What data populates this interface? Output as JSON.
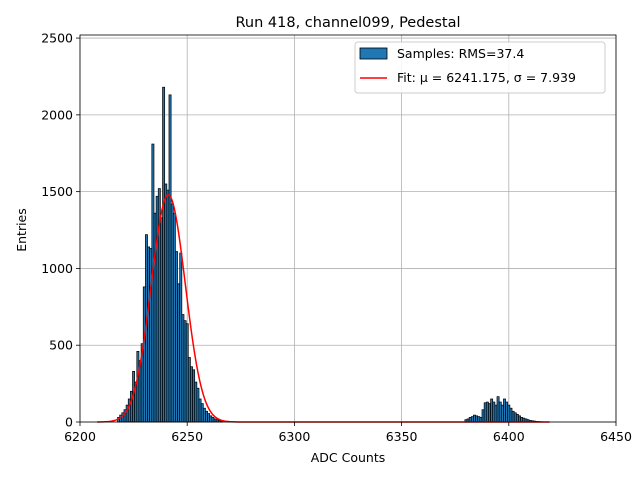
{
  "chart_data": {
    "type": "bar",
    "title": "Run 418, channel099, Pedestal",
    "xlabel": "ADC Counts",
    "ylabel": "Entries",
    "xlim": [
      6200,
      6450
    ],
    "ylim": [
      0,
      2520
    ],
    "xticks": [
      6200,
      6250,
      6300,
      6350,
      6400,
      6450
    ],
    "yticks": [
      0,
      500,
      1000,
      1500,
      2000,
      2500
    ],
    "grid": true,
    "legend_position": "top-right",
    "colors": {
      "bar_fill": "#1f77b4",
      "bar_edge": "#000000",
      "fit_line": "#ff0000",
      "grid": "#b0b0b0"
    },
    "legend": [
      {
        "label": "Samples: RMS=37.4",
        "kind": "patch"
      },
      {
        "label": "Fit: μ = 6241.175, σ = 7.939",
        "kind": "line"
      }
    ],
    "bin_width": 1,
    "histogram": {
      "x": [
        6218,
        6219,
        6220,
        6221,
        6222,
        6223,
        6224,
        6225,
        6226,
        6227,
        6228,
        6229,
        6230,
        6231,
        6232,
        6233,
        6234,
        6235,
        6236,
        6237,
        6238,
        6239,
        6240,
        6241,
        6242,
        6243,
        6244,
        6245,
        6246,
        6247,
        6248,
        6249,
        6250,
        6251,
        6252,
        6253,
        6254,
        6255,
        6256,
        6257,
        6258,
        6259,
        6260,
        6261,
        6262,
        6263,
        6264,
        6265,
        6266,
        6380,
        6381,
        6382,
        6383,
        6384,
        6385,
        6386,
        6387,
        6388,
        6389,
        6390,
        6391,
        6392,
        6393,
        6394,
        6395,
        6396,
        6397,
        6398,
        6399,
        6400,
        6401,
        6402,
        6403,
        6404,
        6405,
        6406,
        6407,
        6408,
        6409,
        6410,
        6411,
        6412,
        6413,
        6414,
        6415
      ],
      "values": [
        30,
        45,
        60,
        80,
        110,
        150,
        200,
        330,
        260,
        460,
        400,
        510,
        880,
        1220,
        1140,
        1130,
        1810,
        1360,
        1470,
        1520,
        1330,
        2180,
        1550,
        1510,
        2130,
        1420,
        1360,
        1110,
        900,
        1100,
        700,
        660,
        640,
        420,
        360,
        340,
        260,
        220,
        150,
        120,
        90,
        70,
        55,
        40,
        30,
        20,
        15,
        10,
        5,
        15,
        20,
        30,
        35,
        45,
        40,
        35,
        30,
        80,
        125,
        130,
        120,
        150,
        130,
        110,
        165,
        130,
        110,
        150,
        130,
        110,
        90,
        70,
        60,
        50,
        40,
        30,
        25,
        20,
        15,
        10,
        8,
        6,
        4,
        3,
        2
      ]
    },
    "fit": {
      "mu": 6241.175,
      "sigma": 7.939,
      "amplitude": 1480,
      "x_start": 6208,
      "x_end": 6419
    }
  }
}
